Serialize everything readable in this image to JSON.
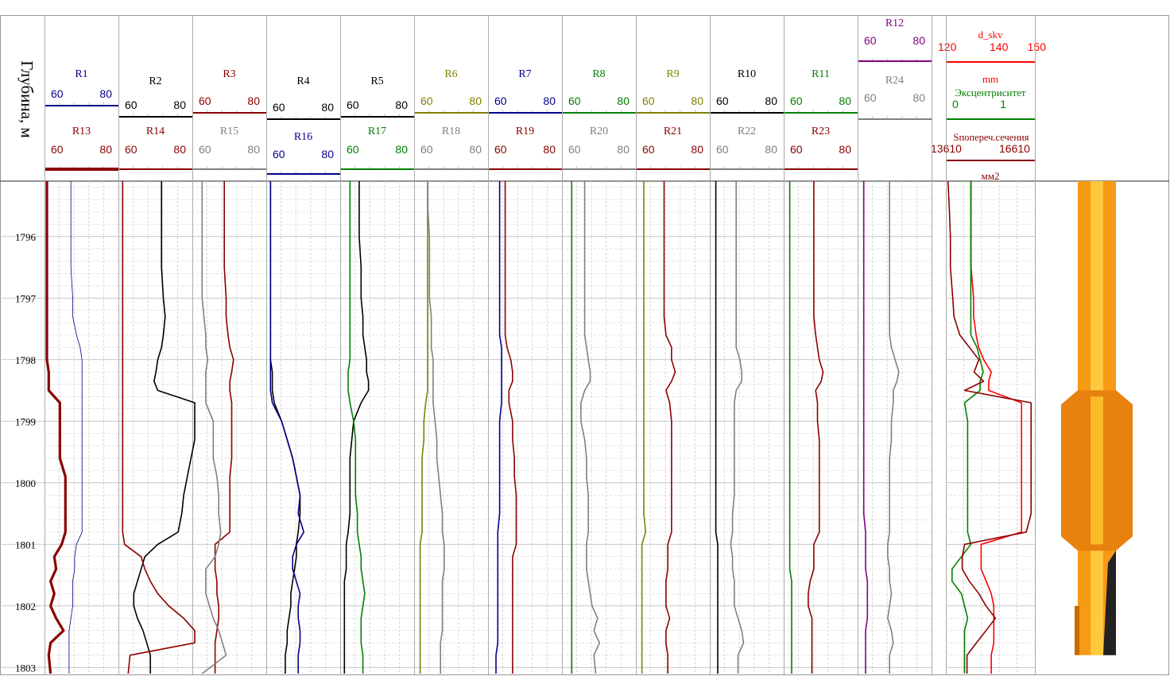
{
  "depth_title": "Глубина, м",
  "depth_ticks": [
    "1796",
    "1797",
    "1798",
    "1799",
    "1800",
    "1801",
    "1802",
    "1803"
  ],
  "colors": {
    "R1": "#00008b",
    "R2": "#000000",
    "R3": "#8b0000",
    "R4": "#000000",
    "R5": "#000000",
    "R6": "#808000",
    "R7": "#00008b",
    "R8": "#008000",
    "R9": "#808000",
    "R10": "#000000",
    "R11": "#008000",
    "R12": "#800080",
    "R13": "#8b0000",
    "R14": "#8b0000",
    "R15": "#808080",
    "R16": "#00008b",
    "R17": "#008000",
    "R18": "#808080",
    "R19": "#8b0000",
    "R20": "#808080",
    "R21": "#8b0000",
    "R22": "#808080",
    "R23": "#8b0000",
    "R24": "#808080",
    "d_skv": "#ff0000",
    "ecc": "#008000",
    "area": "#8b0000",
    "pipe": "#f79a14"
  },
  "tracks": [
    {
      "top": {
        "name": "R1",
        "min": "60",
        "max": "80"
      },
      "bottom": {
        "name": "R13",
        "min": "60",
        "max": "80"
      }
    },
    {
      "top": {
        "name": "R2",
        "min": "60",
        "max": "80"
      },
      "bottom": {
        "name": "R14",
        "min": "60",
        "max": "80"
      }
    },
    {
      "top": {
        "name": "R3",
        "min": "60",
        "max": "80"
      },
      "bottom": {
        "name": "R15",
        "min": "60",
        "max": "80"
      }
    },
    {
      "top": {
        "name": "R4",
        "min": "60",
        "max": "80"
      },
      "bottom": {
        "name": "R16",
        "min": "60",
        "max": "80"
      }
    },
    {
      "top": {
        "name": "R5",
        "min": "60",
        "max": "80"
      },
      "bottom": {
        "name": "R17",
        "min": "60",
        "max": "80"
      }
    },
    {
      "top": {
        "name": "R6",
        "min": "60",
        "max": "80"
      },
      "bottom": {
        "name": "R18",
        "min": "60",
        "max": "80"
      }
    },
    {
      "top": {
        "name": "R7",
        "min": "60",
        "max": "80"
      },
      "bottom": {
        "name": "R19",
        "min": "60",
        "max": "80"
      }
    },
    {
      "top": {
        "name": "R8",
        "min": "60",
        "max": "80"
      },
      "bottom": {
        "name": "R20",
        "min": "60",
        "max": "80"
      }
    },
    {
      "top": {
        "name": "R9",
        "min": "60",
        "max": "80"
      },
      "bottom": {
        "name": "R21",
        "min": "60",
        "max": "80"
      }
    },
    {
      "top": {
        "name": "R10",
        "min": "60",
        "max": "80"
      },
      "bottom": {
        "name": "R22",
        "min": "60",
        "max": "80"
      }
    },
    {
      "top": {
        "name": "R11",
        "min": "60",
        "max": "80"
      },
      "bottom": {
        "name": "R23",
        "min": "60",
        "max": "80"
      }
    },
    {
      "top": {
        "name": "R12",
        "min": "60",
        "max": "80"
      },
      "bottom": {
        "name": "R24",
        "min": "60",
        "max": "80"
      }
    }
  ],
  "geometry_track": {
    "d_skv": {
      "name": "d_skv",
      "min": "120",
      "mid": "140",
      "max": "150",
      "unit": "mm"
    },
    "ecc": {
      "name": "Эксцентриситет",
      "min": "0",
      "max": "1"
    },
    "area": {
      "name": "Sпопереч.сечения",
      "min": "13610",
      "max": "16610",
      "unit": "мм2"
    }
  },
  "chart_data": {
    "type": "line",
    "y_axis": {
      "label": "Глубина, м",
      "range": [
        1795.1,
        1803.1
      ],
      "direction": "down"
    },
    "x_scale": {
      "min": 60,
      "max": 80
    },
    "depths": [
      1795.1,
      1795.5,
      1796.0,
      1796.5,
      1797.0,
      1797.3,
      1797.6,
      1797.8,
      1798.0,
      1798.2,
      1798.35,
      1798.5,
      1798.7,
      1799.0,
      1799.3,
      1799.6,
      1799.9,
      1800.2,
      1800.5,
      1800.8,
      1801.0,
      1801.2,
      1801.4,
      1801.6,
      1801.8,
      1802.0,
      1802.2,
      1802.4,
      1802.6,
      1802.8,
      1803.1
    ],
    "series": [
      {
        "name": "R1",
        "values": [
          73,
          73,
          73,
          73,
          74,
          74,
          76,
          78,
          79,
          79,
          79,
          79,
          79,
          79,
          79,
          79,
          79,
          79,
          79,
          79,
          76,
          75,
          75,
          74,
          74,
          74,
          73,
          72,
          72,
          72,
          72
        ]
      },
      {
        "name": "R13",
        "values": [
          60,
          60,
          60,
          60,
          60,
          60,
          60,
          60,
          60,
          61,
          61,
          61,
          67,
          67,
          67,
          67,
          70,
          70,
          70,
          70,
          68,
          64,
          65,
          62,
          64,
          62,
          65,
          69,
          62,
          61,
          62
        ]
      },
      {
        "name": "R2",
        "values": [
          82,
          82,
          82,
          82,
          83,
          84,
          83,
          82,
          80,
          79,
          78,
          80,
          100,
          100,
          100,
          98,
          96,
          94,
          93,
          91,
          80,
          73,
          71,
          69,
          67,
          67,
          69,
          72,
          74,
          76,
          76
        ]
      },
      {
        "name": "R14",
        "values": [
          61,
          61,
          61,
          61,
          61,
          61,
          61,
          61,
          61,
          61,
          61,
          61,
          61,
          61,
          61,
          61,
          61,
          61,
          61,
          61,
          62,
          71,
          73,
          76,
          80,
          86,
          94,
          100,
          100,
          65,
          64
        ]
      },
      {
        "name": "R3",
        "values": [
          76,
          76,
          76,
          76,
          77,
          77,
          78,
          79,
          81,
          80,
          79,
          79,
          80,
          80,
          80,
          80,
          79,
          79,
          79,
          79,
          71,
          71,
          71,
          72,
          72,
          73,
          73,
          72,
          71,
          71,
          71
        ]
      },
      {
        "name": "R15",
        "values": [
          64,
          64,
          64,
          64,
          64,
          65,
          66,
          66,
          67,
          66,
          66,
          66,
          66,
          70,
          70,
          70,
          72,
          73,
          73,
          74,
          73,
          71,
          66,
          66,
          66,
          68,
          70,
          73,
          75,
          77,
          64
        ]
      },
      {
        "name": "R4",
        "values": [
          61,
          61,
          61,
          61,
          61,
          61,
          61,
          61,
          61,
          62,
          62,
          62,
          63,
          67,
          70,
          73,
          75,
          77,
          77,
          76,
          75,
          75,
          74,
          73,
          72,
          72,
          71,
          70,
          70,
          69,
          69
        ]
      },
      {
        "name": "R16",
        "values": [
          61,
          61,
          61,
          61,
          61,
          61,
          61,
          61,
          61,
          61,
          61,
          61,
          62,
          67,
          70,
          73,
          75,
          77,
          76,
          79,
          75,
          73,
          73,
          75,
          77,
          76,
          76,
          77,
          77,
          76,
          76
        ]
      },
      {
        "name": "R5",
        "values": [
          69,
          69,
          69,
          70,
          70,
          71,
          71,
          72,
          73,
          73,
          74,
          74,
          70,
          66,
          65,
          64,
          64,
          64,
          64,
          63,
          62,
          62,
          62,
          61,
          61,
          61,
          61,
          61,
          61,
          61,
          61
        ]
      },
      {
        "name": "R17",
        "values": [
          64,
          64,
          64,
          64,
          64,
          64,
          64,
          64,
          64,
          63,
          63,
          63,
          64,
          66,
          67,
          67,
          67,
          67,
          68,
          68,
          69,
          70,
          70,
          71,
          72,
          71,
          70,
          70,
          70,
          71,
          71
        ]
      },
      {
        "name": "R6",
        "values": [
          66,
          66,
          66,
          66,
          66,
          66,
          66,
          66,
          66,
          66,
          66,
          66,
          65,
          64,
          64,
          63,
          63,
          63,
          63,
          63,
          62,
          62,
          62,
          62,
          62,
          62,
          62,
          62,
          62,
          62,
          62
        ]
      },
      {
        "name": "R18",
        "values": [
          66,
          66,
          67,
          67,
          67,
          68,
          68,
          68,
          69,
          69,
          69,
          69,
          69,
          70,
          71,
          71,
          72,
          73,
          74,
          74,
          75,
          75,
          75,
          74,
          74,
          74,
          74,
          74,
          73,
          73,
          73
        ]
      },
      {
        "name": "R7",
        "values": [
          65,
          65,
          65,
          65,
          65,
          65,
          65,
          66,
          66,
          66,
          66,
          66,
          66,
          65,
          65,
          65,
          65,
          65,
          65,
          64,
          64,
          64,
          64,
          64,
          64,
          64,
          64,
          64,
          64,
          63,
          63
        ]
      },
      {
        "name": "R19",
        "values": [
          68,
          68,
          68,
          68,
          68,
          68,
          68,
          69,
          71,
          72,
          72,
          70,
          70,
          72,
          72,
          73,
          73,
          74,
          74,
          74,
          74,
          72,
          72,
          72,
          72,
          72,
          72,
          72,
          72,
          72,
          72
        ]
      },
      {
        "name": "R8",
        "values": [
          64,
          64,
          64,
          64,
          64,
          64,
          64,
          64,
          64,
          64,
          64,
          64,
          64,
          64,
          64,
          64,
          64,
          64,
          64,
          64,
          64,
          64,
          64,
          64,
          64,
          64,
          64,
          64,
          64,
          64,
          64
        ]
      },
      {
        "name": "R20",
        "values": [
          71,
          71,
          71,
          71,
          71,
          71,
          71,
          72,
          73,
          74,
          74,
          71,
          69,
          69,
          71,
          72,
          72,
          73,
          73,
          73,
          72,
          72,
          72,
          73,
          74,
          75,
          78,
          76,
          79,
          76,
          77
        ]
      },
      {
        "name": "R9",
        "values": [
          63,
          63,
          63,
          63,
          63,
          63,
          63,
          63,
          63,
          63,
          63,
          63,
          63,
          63,
          63,
          63,
          63,
          63,
          63,
          64,
          62,
          62,
          62,
          62,
          62,
          62,
          62,
          62,
          62,
          62,
          62
        ]
      },
      {
        "name": "R21",
        "values": [
          74,
          74,
          74,
          74,
          74,
          74,
          75,
          78,
          78,
          80,
          78,
          75,
          77,
          78,
          78,
          78,
          78,
          78,
          78,
          78,
          76,
          76,
          76,
          75,
          75,
          75,
          77,
          75,
          75,
          76,
          76
        ]
      },
      {
        "name": "R10",
        "values": [
          62,
          62,
          62,
          62,
          62,
          62,
          62,
          62,
          62,
          62,
          62,
          62,
          62,
          62,
          62,
          62,
          62,
          62,
          62,
          62,
          63,
          63,
          63,
          63,
          63,
          63,
          63,
          63,
          63,
          63,
          63
        ]
      },
      {
        "name": "R22",
        "values": [
          73,
          73,
          73,
          73,
          73,
          73,
          73,
          73,
          75,
          76,
          76,
          73,
          72,
          72,
          72,
          72,
          72,
          72,
          71,
          71,
          70,
          71,
          71,
          72,
          72,
          72,
          74,
          76,
          77,
          74,
          74
        ]
      },
      {
        "name": "R11",
        "values": [
          62,
          62,
          62,
          62,
          62,
          62,
          62,
          62,
          62,
          62,
          62,
          62,
          62,
          62,
          62,
          62,
          62,
          62,
          62,
          62,
          62,
          62,
          62,
          63,
          63,
          63,
          63,
          63,
          63,
          63,
          63
        ]
      },
      {
        "name": "R23",
        "values": [
          75,
          75,
          75,
          75,
          75,
          75,
          76,
          77,
          78,
          80,
          79,
          76,
          77,
          77,
          78,
          78,
          78,
          78,
          78,
          78,
          75,
          75,
          75,
          73,
          72,
          72,
          74,
          74,
          74,
          74,
          74
        ]
      },
      {
        "name": "R12",
        "values": [
          62,
          62,
          62,
          62,
          62,
          62,
          62,
          62,
          62,
          62,
          62,
          62,
          62,
          62,
          62,
          62,
          62,
          62,
          62,
          63,
          63,
          63,
          63,
          64,
          64,
          64,
          64,
          63,
          63,
          63,
          63
        ]
      },
      {
        "name": "R24",
        "values": [
          76,
          76,
          76,
          76,
          76,
          76,
          76,
          77,
          79,
          81,
          80,
          78,
          78,
          77,
          77,
          76,
          76,
          76,
          76,
          76,
          75,
          75,
          76,
          76,
          77,
          76,
          75,
          77,
          78,
          76,
          76
        ]
      },
      {
        "name": "d_skv",
        "values": [
          130,
          130,
          130,
          130,
          131,
          131,
          132,
          133,
          135,
          138,
          137,
          137,
          150,
          150,
          150,
          150,
          150,
          150,
          150,
          150,
          134,
          134,
          134,
          136,
          138,
          139,
          139,
          139,
          139,
          138,
          138
        ]
      },
      {
        "name": "Эксцентриситет",
        "values": [
          0.4,
          0.4,
          0.4,
          0.4,
          0.4,
          0.4,
          0.4,
          0.5,
          0.55,
          0.6,
          0.55,
          0.55,
          0.3,
          0.35,
          0.35,
          0.35,
          0.35,
          0.35,
          0.35,
          0.35,
          0.4,
          0.25,
          0.1,
          0.1,
          0.25,
          0.3,
          0.35,
          0.3,
          0.3,
          0.3,
          0.3
        ]
      },
      {
        "name": "Sпопереч.сечения",
        "values": [
          13700,
          13750,
          13800,
          13800,
          13900,
          13950,
          14200,
          14600,
          15000,
          14800,
          15200,
          14400,
          17200,
          17200,
          17200,
          17200,
          17200,
          17200,
          17200,
          17000,
          14400,
          14300,
          14300,
          14600,
          15000,
          15300,
          15700,
          15300,
          14900,
          14500,
          14500
        ]
      }
    ],
    "pipe_image": {
      "type": "pipe",
      "collar_depth_range": [
        1798.6,
        1801.0
      ]
    }
  }
}
